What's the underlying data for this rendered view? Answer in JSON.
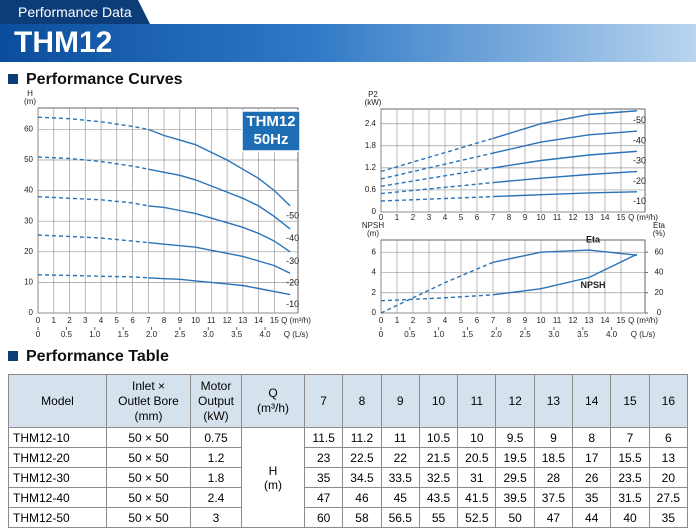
{
  "header": {
    "subtitle": "Performance Data",
    "title": "THM12"
  },
  "sections": {
    "curves": "Performance Curves",
    "table": "Performance Table"
  },
  "chart_data": [
    {
      "type": "line",
      "y_label": "H",
      "y_unit": "(m)",
      "x_label": "Q (m³/h)",
      "x2_label": "Q (L/s)",
      "badge": [
        "THM12",
        "50Hz"
      ],
      "color": "#2a73b8",
      "dashed_below_x": 7,
      "grid": true,
      "x": [
        0,
        2,
        4,
        6,
        7,
        8,
        9,
        10,
        11,
        12,
        13,
        14,
        15,
        16
      ],
      "series": [
        {
          "name": "-50",
          "values": [
            64,
            63.5,
            62.5,
            61,
            60,
            58,
            56.5,
            55,
            52.5,
            50,
            47,
            44,
            40,
            35
          ]
        },
        {
          "name": "-40",
          "values": [
            51,
            50.5,
            49.5,
            48,
            47,
            46,
            45,
            43.5,
            41.5,
            39.5,
            37.5,
            35,
            31.5,
            27.5
          ]
        },
        {
          "name": "-30",
          "values": [
            38,
            37.5,
            37,
            36,
            35,
            34.5,
            33.5,
            32.5,
            31,
            29.5,
            28,
            26,
            23.5,
            20
          ]
        },
        {
          "name": "-20",
          "values": [
            25.5,
            25,
            24.5,
            23.5,
            23,
            22.5,
            22,
            21.5,
            20.5,
            19.5,
            18.5,
            17,
            15.5,
            13
          ]
        },
        {
          "name": "-10",
          "values": [
            12.5,
            12.3,
            12,
            11.8,
            11.5,
            11.2,
            11,
            10.5,
            10,
            9.5,
            9,
            8,
            7,
            6
          ]
        }
      ],
      "xlim": [
        0,
        16.5
      ],
      "ylim": [
        0,
        67
      ],
      "xticks": [
        0,
        1,
        2,
        3,
        4,
        5,
        6,
        7,
        8,
        9,
        10,
        11,
        12,
        13,
        14,
        15
      ],
      "yticks": [
        0,
        10,
        20,
        30,
        40,
        50,
        60
      ],
      "x2lim": [
        0,
        4.58
      ],
      "x2ticks": [
        0,
        0.5,
        {
          "value": 1,
          "label": "1.0"
        },
        1.5,
        {
          "value": 2,
          "label": "2.0"
        },
        2.5,
        {
          "value": 3,
          "label": "3.0"
        },
        3.5,
        {
          "value": 4,
          "label": "4.0"
        }
      ]
    },
    {
      "type": "line",
      "y_label": "P2",
      "y_unit": "(kW)",
      "x_label": "Q (m³/h)",
      "color": "#2a73b8",
      "dashed_below_x": 7,
      "grid": true,
      "x": [
        0,
        7,
        10,
        13,
        16
      ],
      "series": [
        {
          "name": "-50",
          "values": [
            1.1,
            2.0,
            2.4,
            2.65,
            2.75
          ]
        },
        {
          "name": "-40",
          "values": [
            0.9,
            1.6,
            1.9,
            2.1,
            2.2
          ]
        },
        {
          "name": "-30",
          "values": [
            0.7,
            1.2,
            1.4,
            1.55,
            1.65
          ]
        },
        {
          "name": "-20",
          "values": [
            0.5,
            0.8,
            0.92,
            1.02,
            1.1
          ]
        },
        {
          "name": "-10",
          "values": [
            0.3,
            0.42,
            0.47,
            0.52,
            0.55
          ]
        }
      ],
      "xlim": [
        0,
        16.5
      ],
      "ylim": [
        0,
        2.8
      ],
      "xticks": [
        0,
        1,
        2,
        3,
        4,
        5,
        6,
        7,
        8,
        9,
        10,
        11,
        12,
        13,
        14,
        15
      ],
      "yticks": [
        0,
        0.6,
        1.2,
        1.8,
        2.4
      ]
    },
    {
      "type": "line",
      "y_label": "NPSH",
      "y_unit": "(m)",
      "y2_label": "Eta",
      "y2_unit": "(%)",
      "x_label": "Q (m³/h)",
      "x2_label": "Q (L/s)",
      "color": "#2a73b8",
      "dashed_below_x": 7,
      "grid": true,
      "x": [
        0,
        4,
        7,
        10,
        13,
        16
      ],
      "series": [
        {
          "name": "Eta",
          "axis": "y2",
          "values": [
            0,
            30,
            50,
            60,
            62,
            57
          ]
        },
        {
          "name": "NPSH",
          "values": [
            1.2,
            1.5,
            1.8,
            2.4,
            3.5,
            5.8
          ]
        }
      ],
      "xlim": [
        0,
        16.5
      ],
      "ylim": [
        0,
        7.2
      ],
      "y2lim": [
        0,
        72
      ],
      "xticks": [
        0,
        1,
        2,
        3,
        4,
        5,
        6,
        7,
        8,
        9,
        10,
        11,
        12,
        13,
        14,
        15
      ],
      "yticks": [
        0,
        2,
        4,
        6
      ],
      "y2ticks": [
        0,
        20,
        40,
        60
      ],
      "x2lim": [
        0,
        4.58
      ],
      "x2ticks": [
        0,
        0.5,
        {
          "value": 1,
          "label": "1.0"
        },
        1.5,
        {
          "value": 2,
          "label": "2.0"
        },
        2.5,
        {
          "value": 3,
          "label": "3.0"
        },
        3.5,
        {
          "value": 4,
          "label": "4.0"
        }
      ]
    }
  ],
  "table": {
    "columns": [
      "Model",
      "Inlet ×\nOutlet Bore\n(mm)",
      "Motor\nOutput\n(kW)",
      "Q\n(m³/h)"
    ],
    "flows": [
      7,
      8,
      9,
      10,
      11,
      12,
      13,
      14,
      15,
      16
    ],
    "head_label": "H\n(m)",
    "rows": [
      {
        "model": "THM12-10",
        "bore": "50 × 50",
        "power": 0.75,
        "head": [
          11.5,
          11.2,
          11,
          10.5,
          10,
          9.5,
          9,
          8,
          7,
          6
        ]
      },
      {
        "model": "THM12-20",
        "bore": "50 × 50",
        "power": 1.2,
        "head": [
          23,
          22.5,
          22,
          21.5,
          20.5,
          19.5,
          18.5,
          17,
          15.5,
          13
        ]
      },
      {
        "model": "THM12-30",
        "bore": "50 × 50",
        "power": 1.8,
        "head": [
          35,
          34.5,
          33.5,
          32.5,
          31,
          29.5,
          28,
          26,
          23.5,
          20
        ]
      },
      {
        "model": "THM12-40",
        "bore": "50 × 50",
        "power": 2.4,
        "head": [
          47,
          46,
          45,
          43.5,
          41.5,
          39.5,
          37.5,
          35,
          31.5,
          27.5
        ]
      },
      {
        "model": "THM12-50",
        "bore": "50 × 50",
        "power": 3,
        "head": [
          60,
          58,
          56.5,
          55,
          52.5,
          50,
          47,
          44,
          40,
          35
        ]
      }
    ]
  }
}
